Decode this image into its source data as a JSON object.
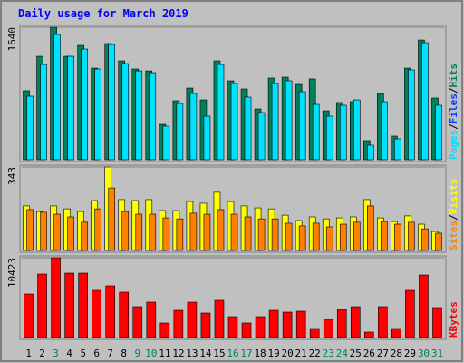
{
  "title": "Daily usage for March 2019",
  "separator": "/",
  "chart_data": [
    {
      "type": "bar",
      "series": [
        {
          "name": "Hits",
          "color": "#00805c",
          "values": [
            854,
            1280,
            1640,
            1280,
            1415,
            1134,
            1438,
            1224,
            1123,
            1100,
            438,
            730,
            887,
            741,
            1224,
            977,
            876,
            629,
            1011,
            1022,
            932,
            1000,
            606,
            708,
            719,
            236,
            820,
            292,
            1134,
            1482,
            764
          ]
        },
        {
          "name": "Pages",
          "color": "#00e0ff",
          "values": [
            786,
            1179,
            1550,
            1280,
            1370,
            1123,
            1426,
            1190,
            1100,
            1078,
            415,
            696,
            820,
            539,
            1179,
            943,
            775,
            584,
            943,
            977,
            842,
            685,
            539,
            674,
            741,
            180,
            719,
            258,
            1112,
            1449,
            674
          ]
        }
      ],
      "extra_legend": {
        "name": "Files",
        "color": "#0040ff"
      },
      "ylim": [
        0,
        1640
      ],
      "yticks": [
        1640
      ]
    },
    {
      "type": "bar",
      "series": [
        {
          "name": "Visits",
          "color": "#ffff00",
          "values": [
            183,
            160,
            183,
            171,
            160,
            205,
            343,
            209,
            205,
            209,
            164,
            164,
            201,
            194,
            239,
            201,
            183,
            175,
            171,
            145,
            123,
            138,
            130,
            134,
            138,
            209,
            134,
            119,
            142,
            108,
            78
          ]
        },
        {
          "name": "Sites",
          "color": "#ff8000",
          "values": [
            168,
            157,
            149,
            138,
            116,
            171,
            257,
            160,
            149,
            149,
            134,
            130,
            153,
            149,
            168,
            149,
            138,
            130,
            130,
            112,
            101,
            112,
            97,
            108,
            116,
            183,
            119,
            108,
            116,
            89,
            71
          ]
        }
      ],
      "ylim": [
        0,
        343
      ],
      "yticks": [
        343
      ]
    },
    {
      "type": "bar",
      "series": [
        {
          "name": "KBytes",
          "color": "#ff0000",
          "values": [
            5684,
            8291,
            10423,
            8409,
            8409,
            6158,
            6750,
            5922,
            4027,
            4619,
            1895,
            3553,
            4619,
            3198,
            4856,
            2724,
            1895,
            2724,
            3553,
            3316,
            3435,
            1184,
            2369,
            3671,
            4027,
            711,
            4027,
            1184,
            6158,
            8172,
            3908
          ]
        }
      ],
      "ylim": [
        0,
        10423
      ],
      "yticks": [
        10423
      ],
      "categories": [
        "1",
        "2",
        "3",
        "4",
        "5",
        "6",
        "7",
        "8",
        "9",
        "10",
        "11",
        "12",
        "13",
        "14",
        "15",
        "16",
        "17",
        "18",
        "19",
        "20",
        "21",
        "22",
        "23",
        "24",
        "25",
        "26",
        "27",
        "28",
        "29",
        "30",
        "31"
      ],
      "category_colors": [
        "#000000",
        "#000000",
        "#00805c",
        "#000000",
        "#000000",
        "#000000",
        "#000000",
        "#000000",
        "#00805c",
        "#00805c",
        "#000000",
        "#000000",
        "#000000",
        "#000000",
        "#000000",
        "#00805c",
        "#00805c",
        "#000000",
        "#000000",
        "#000000",
        "#000000",
        "#000000",
        "#00805c",
        "#00805c",
        "#000000",
        "#000000",
        "#000000",
        "#000000",
        "#000000",
        "#00805c",
        "#00805c"
      ]
    }
  ]
}
